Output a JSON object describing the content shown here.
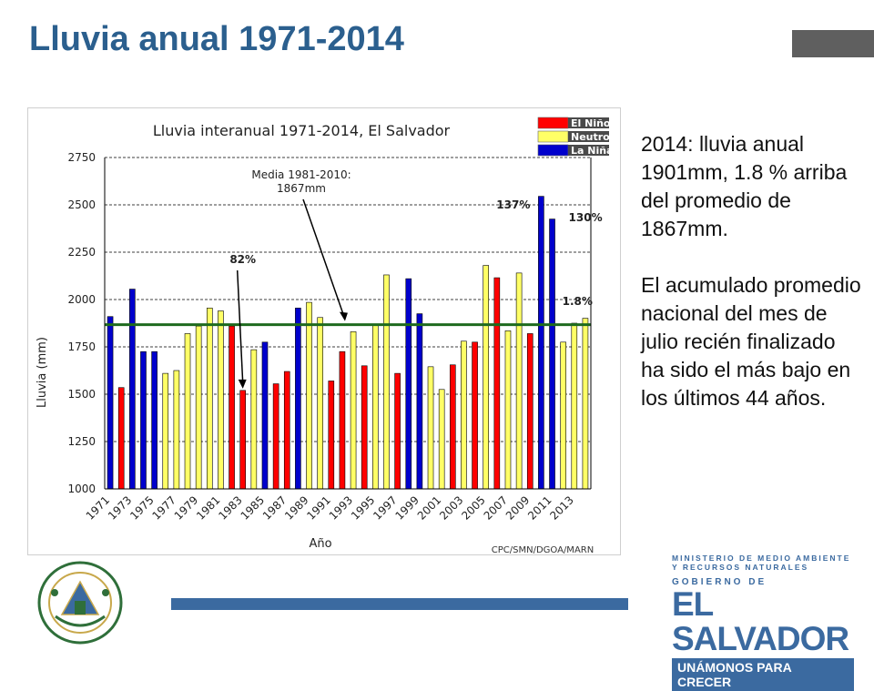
{
  "slide": {
    "title": "Lluvia anual 1971-2014",
    "side_paragraph_1": "2014: lluvia anual 1901mm, 1.8 % arriba del promedio de 1867mm.",
    "side_paragraph_2": "El acumulado promedio nacional del mes de julio recién finalizado ha sido el más bajo en los últimos 44 años.",
    "logo": {
      "ministry": "MINISTERIO DE MEDIO AMBIENTE Y RECURSOS NATURALES",
      "gov_label": "GOBIERNO DE",
      "gov_name": "EL SALVADOR",
      "motto": "UNÁMONOS PARA CRECER"
    },
    "seal_text": "REPUBLICA DE EL SALVADOR EN LA AMERICA CENTRAL",
    "colors": {
      "title": "#2b5f8e",
      "accent_bar": "#3b6aa0"
    }
  },
  "chart_data": {
    "type": "bar",
    "title": "Lluvia interanual 1971-2014, El Salvador",
    "xlabel": "Año",
    "ylabel": "Lluvia (mm)",
    "source": "CPC/SMN/DGOA/MARN",
    "ylim": [
      1000,
      2750
    ],
    "yticks": [
      1000,
      1250,
      1500,
      1750,
      2000,
      2250,
      2500,
      2750
    ],
    "grid": true,
    "legend_position": "top-right",
    "categories": [
      1971,
      1972,
      1973,
      1974,
      1975,
      1976,
      1977,
      1978,
      1979,
      1980,
      1981,
      1982,
      1983,
      1984,
      1985,
      1986,
      1987,
      1988,
      1989,
      1990,
      1991,
      1992,
      1993,
      1994,
      1995,
      1996,
      1997,
      1998,
      1999,
      2000,
      2001,
      2002,
      2003,
      2004,
      2005,
      2006,
      2007,
      2008,
      2009,
      2010,
      2011,
      2012,
      2013,
      2014
    ],
    "tick_labels": [
      "1971",
      "1973",
      "1975",
      "1977",
      "1979",
      "1981",
      "1983",
      "1985",
      "1987",
      "1989",
      "1991",
      "1993",
      "1995",
      "1997",
      "1999",
      "2001",
      "2003",
      "2005",
      "2007",
      "2009",
      "2011",
      "2013"
    ],
    "values": [
      1910,
      1535,
      2055,
      1725,
      1725,
      1610,
      1625,
      1820,
      1860,
      1955,
      1940,
      1860,
      1520,
      1735,
      1775,
      1555,
      1620,
      1955,
      1985,
      1905,
      1570,
      1725,
      1830,
      1650,
      1865,
      2130,
      1610,
      2110,
      1925,
      1645,
      1525,
      1655,
      1780,
      1775,
      2180,
      2115,
      1835,
      2140,
      1820,
      2545,
      2425,
      1775,
      1875,
      1901
    ],
    "enso": [
      "N",
      "E",
      "N",
      "N",
      "N",
      "U",
      "U",
      "U",
      "U",
      "U",
      "U",
      "E",
      "E",
      "U",
      "N",
      "E",
      "E",
      "N",
      "U",
      "U",
      "E",
      "E",
      "U",
      "E",
      "U",
      "U",
      "E",
      "N",
      "N",
      "U",
      "U",
      "E",
      "U",
      "E",
      "U",
      "E",
      "U",
      "U",
      "E",
      "N",
      "N",
      "U",
      "U",
      "U"
    ],
    "legend": [
      {
        "key": "E",
        "label": "El Niño",
        "color": "#ff0000"
      },
      {
        "key": "U",
        "label": "Neutro",
        "color": "#ffff66"
      },
      {
        "key": "N",
        "label": "La Niña",
        "color": "#0000cc"
      }
    ],
    "mean_line": {
      "value": 1867,
      "color": "#1e6a1e",
      "label": "Media 1981-2010:\n1867mm"
    },
    "annotations": [
      {
        "text": "82%",
        "year": 1983
      },
      {
        "text": "137%",
        "year": 2010
      },
      {
        "text": "130%",
        "year": 2011
      },
      {
        "text": "1.8%",
        "year": 2014
      }
    ]
  }
}
